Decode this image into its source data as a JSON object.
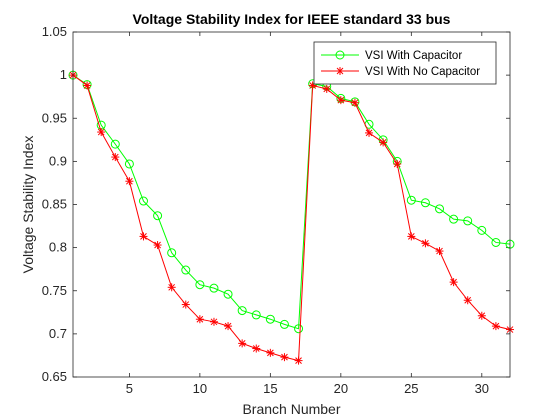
{
  "chart_data": {
    "type": "line",
    "title": "Voltage Stability Index for IEEE standard 33 bus",
    "xlabel": "Branch Number",
    "ylabel": "Voltage Stability Index",
    "xlim": [
      1,
      32
    ],
    "ylim": [
      0.65,
      1.05
    ],
    "xticks": [
      5,
      10,
      15,
      20,
      25,
      30
    ],
    "yticks": [
      0.65,
      0.7,
      0.75,
      0.8,
      0.85,
      0.9,
      0.95,
      1,
      1.05
    ],
    "xtick_labels": [
      "5",
      "10",
      "15",
      "20",
      "25",
      "30"
    ],
    "ytick_labels": [
      "0.65",
      "0.7",
      "0.75",
      "0.8",
      "0.85",
      "0.9",
      "0.95",
      "1",
      "1.05"
    ],
    "grid": false,
    "legend_position": "top-right",
    "x": [
      1,
      2,
      3,
      4,
      5,
      6,
      7,
      8,
      9,
      10,
      11,
      12,
      13,
      14,
      15,
      16,
      17,
      18,
      19,
      20,
      21,
      22,
      23,
      24,
      25,
      26,
      27,
      28,
      29,
      30,
      31,
      32
    ],
    "series": [
      {
        "name": "VSI With Capacitor",
        "color": "#00ff00",
        "marker": "circle",
        "values": [
          1.0,
          0.989,
          0.942,
          0.92,
          0.897,
          0.854,
          0.837,
          0.794,
          0.774,
          0.757,
          0.753,
          0.746,
          0.727,
          0.722,
          0.717,
          0.711,
          0.706,
          0.99,
          0.987,
          0.973,
          0.969,
          0.943,
          0.925,
          0.9,
          0.855,
          0.852,
          0.845,
          0.833,
          0.831,
          0.82,
          0.806,
          0.804
        ]
      },
      {
        "name": "VSI With No Capacitor",
        "color": "#ff0000",
        "marker": "asterisk",
        "values": [
          1.0,
          0.988,
          0.934,
          0.905,
          0.877,
          0.813,
          0.803,
          0.754,
          0.734,
          0.717,
          0.714,
          0.709,
          0.689,
          0.683,
          0.678,
          0.673,
          0.669,
          0.988,
          0.984,
          0.971,
          0.968,
          0.933,
          0.922,
          0.897,
          0.813,
          0.805,
          0.796,
          0.76,
          0.739,
          0.721,
          0.709,
          0.705
        ]
      }
    ]
  }
}
